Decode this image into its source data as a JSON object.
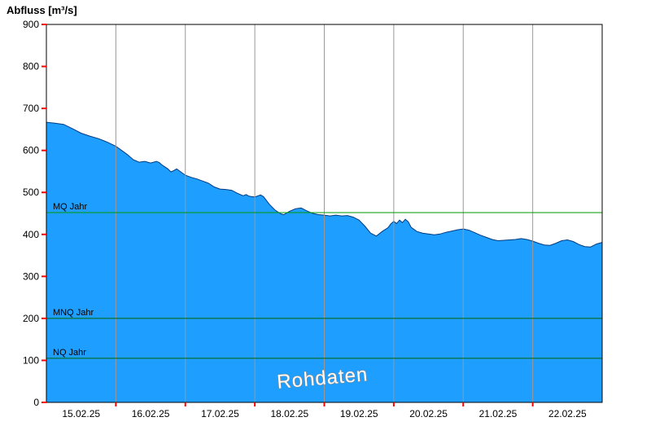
{
  "chart_data": {
    "type": "area",
    "title": "Abfluss [m³/s]",
    "ylabel": "Abfluss [m³/s]",
    "ylim": [
      0,
      900
    ],
    "y_ticks": [
      0,
      100,
      200,
      300,
      400,
      500,
      600,
      700,
      800,
      900
    ],
    "x_domain_hours": 192,
    "x_tick_labels": [
      "15.02.25",
      "16.02.25",
      "17.02.25",
      "18.02.25",
      "19.02.25",
      "20.02.25",
      "21.02.25",
      "22.02.25"
    ],
    "x_label_hours": [
      12,
      36,
      60,
      84,
      108,
      132,
      156,
      180
    ],
    "x_gridline_hours": [
      24,
      48,
      72,
      96,
      120,
      144,
      168
    ],
    "series": [
      {
        "name": "Abfluss",
        "points": [
          [
            0,
            667
          ],
          [
            3,
            665
          ],
          [
            6,
            662
          ],
          [
            9,
            652
          ],
          [
            12,
            641
          ],
          [
            15,
            634
          ],
          [
            18,
            628
          ],
          [
            21,
            620
          ],
          [
            24,
            610
          ],
          [
            26,
            600
          ],
          [
            28,
            590
          ],
          [
            30,
            578
          ],
          [
            32,
            572
          ],
          [
            34,
            574
          ],
          [
            36,
            570
          ],
          [
            38,
            574
          ],
          [
            39,
            571
          ],
          [
            40,
            565
          ],
          [
            42,
            556
          ],
          [
            43,
            549
          ],
          [
            44,
            552
          ],
          [
            45,
            556
          ],
          [
            46,
            551
          ],
          [
            48,
            541
          ],
          [
            50,
            536
          ],
          [
            52,
            532
          ],
          [
            54,
            527
          ],
          [
            56,
            522
          ],
          [
            58,
            513
          ],
          [
            60,
            508
          ],
          [
            62,
            507
          ],
          [
            64,
            505
          ],
          [
            66,
            498
          ],
          [
            68,
            492
          ],
          [
            69,
            495
          ],
          [
            70,
            491
          ],
          [
            72,
            489
          ],
          [
            74,
            494
          ],
          [
            75,
            490
          ],
          [
            77,
            472
          ],
          [
            79,
            458
          ],
          [
            81,
            449
          ],
          [
            82,
            447
          ],
          [
            84,
            455
          ],
          [
            86,
            461
          ],
          [
            88,
            463
          ],
          [
            90,
            456
          ],
          [
            92,
            450
          ],
          [
            94,
            447
          ],
          [
            96,
            446
          ],
          [
            98,
            444
          ],
          [
            100,
            446
          ],
          [
            102,
            444
          ],
          [
            104,
            445
          ],
          [
            106,
            441
          ],
          [
            108,
            434
          ],
          [
            110,
            420
          ],
          [
            112,
            403
          ],
          [
            114,
            396
          ],
          [
            116,
            407
          ],
          [
            118,
            416
          ],
          [
            119,
            425
          ],
          [
            120,
            431
          ],
          [
            121,
            426
          ],
          [
            122,
            434
          ],
          [
            123,
            428
          ],
          [
            124,
            436
          ],
          [
            125,
            430
          ],
          [
            126,
            417
          ],
          [
            128,
            407
          ],
          [
            130,
            403
          ],
          [
            132,
            401
          ],
          [
            134,
            399
          ],
          [
            136,
            401
          ],
          [
            138,
            405
          ],
          [
            140,
            408
          ],
          [
            142,
            411
          ],
          [
            144,
            413
          ],
          [
            146,
            410
          ],
          [
            148,
            404
          ],
          [
            150,
            398
          ],
          [
            152,
            393
          ],
          [
            154,
            388
          ],
          [
            156,
            385
          ],
          [
            158,
            386
          ],
          [
            160,
            387
          ],
          [
            162,
            388
          ],
          [
            164,
            390
          ],
          [
            166,
            388
          ],
          [
            168,
            384
          ],
          [
            170,
            379
          ],
          [
            172,
            375
          ],
          [
            174,
            374
          ],
          [
            176,
            379
          ],
          [
            178,
            385
          ],
          [
            180,
            387
          ],
          [
            182,
            383
          ],
          [
            184,
            376
          ],
          [
            186,
            371
          ],
          [
            188,
            370
          ],
          [
            190,
            377
          ],
          [
            192,
            381
          ]
        ]
      }
    ],
    "ref_lines": [
      {
        "label": "MQ Jahr",
        "value": 452,
        "color": "#009900"
      },
      {
        "label": "MNQ Jahr",
        "value": 200,
        "color": "#006400"
      },
      {
        "label": "NQ Jahr",
        "value": 105,
        "color": "#006400"
      }
    ],
    "watermark": "Rohdaten",
    "legend_position": "none",
    "grid": "vertical-only",
    "colors": {
      "fill": "#1E9FFF",
      "edge": "#003A80",
      "grid": "#999999",
      "tick": "#FF0000",
      "axis": "#000000",
      "watermark_fill": "#FFFFFF",
      "watermark_outline": "#8C8C8C"
    }
  }
}
